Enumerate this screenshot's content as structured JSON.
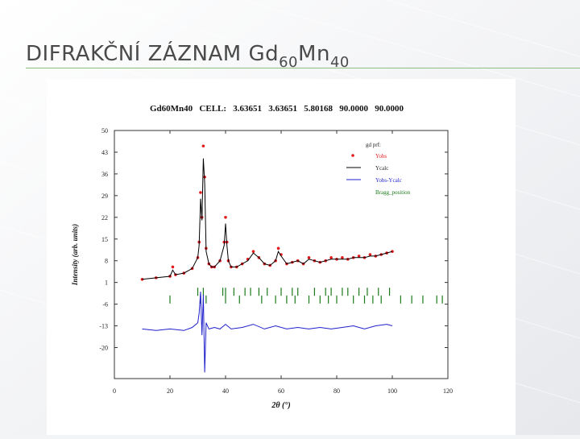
{
  "slide": {
    "title_main": "DIFRAKČNÍ ZÁZNAM Gd",
    "title_sub1": "60",
    "title_mid": "Mn",
    "title_sub2": "40"
  },
  "chart_data": {
    "type": "line",
    "title": "Gd60Mn40   CELL:   3.63651   3.63651   5.80168   90.0000   90.0000",
    "xlabel": "2θ (°)",
    "ylabel": "Intensity (arb. units)",
    "xlim": [
      0,
      120
    ],
    "ylim": [
      -30,
      50
    ],
    "xticks": [
      0,
      20,
      40,
      60,
      80,
      100,
      120
    ],
    "yticks": [
      50,
      43,
      36,
      29,
      22,
      15,
      8,
      1,
      -6,
      -13,
      -20
    ],
    "ytick_labels": [
      "50",
      "43",
      "36",
      "29",
      "22",
      "15",
      "8",
      "1",
      "-6",
      "-13",
      "-20"
    ],
    "legend_title": "gd prf:",
    "legend": [
      {
        "label": "Yobs",
        "color": "#e41a1c",
        "style": "points"
      },
      {
        "label": "Ycalc",
        "color": "#000000",
        "style": "line"
      },
      {
        "label": "Yobs-Ycalc",
        "color": "#1f1fcc",
        "style": "line"
      },
      {
        "label": "Bragg_position",
        "color": "#1a7a1a",
        "style": "ticks"
      }
    ],
    "series": [
      {
        "name": "Yobs",
        "x": [
          10,
          15,
          20,
          21,
          22,
          25,
          28,
          30,
          30.5,
          31,
          31.5,
          32,
          32.5,
          33,
          34,
          35,
          36,
          38,
          39.5,
          40,
          40.5,
          41,
          42,
          44,
          46,
          48,
          50,
          52,
          54,
          56,
          58,
          59,
          60,
          62,
          64,
          66,
          68,
          70,
          72,
          74,
          76,
          78,
          80,
          82,
          84,
          86,
          88,
          90,
          92,
          94,
          96,
          98,
          100
        ],
        "y": [
          2,
          2.5,
          3,
          6,
          3.5,
          4,
          5.5,
          9,
          14,
          30,
          22,
          45,
          35,
          12,
          7,
          6,
          6,
          8,
          14,
          22,
          14,
          8,
          6,
          6,
          7,
          8.5,
          11,
          9,
          7,
          6.5,
          8,
          12,
          10,
          7,
          7.5,
          8,
          7,
          9,
          8,
          7.5,
          8,
          9,
          8.5,
          9,
          8.5,
          9,
          9.5,
          9,
          10,
          9.5,
          10,
          10.5,
          11
        ]
      },
      {
        "name": "Ycalc",
        "x": [
          10,
          15,
          20,
          21,
          22,
          25,
          28,
          30,
          30.5,
          31,
          31.5,
          32,
          32.5,
          33,
          34,
          35,
          36,
          38,
          39.5,
          40,
          40.5,
          41,
          42,
          44,
          46,
          48,
          50,
          52,
          54,
          56,
          58,
          59,
          60,
          62,
          64,
          66,
          68,
          70,
          72,
          74,
          76,
          78,
          80,
          82,
          84,
          86,
          88,
          90,
          92,
          94,
          96,
          98,
          100
        ],
        "y": [
          2,
          2.5,
          3,
          5,
          3.5,
          4,
          5.5,
          9,
          13,
          28,
          21,
          41,
          33,
          11,
          7,
          6,
          6,
          8,
          13,
          20,
          13,
          8,
          6,
          6,
          7,
          8,
          10.5,
          9,
          7,
          6.5,
          8,
          11,
          9.5,
          7,
          7.5,
          8,
          7,
          8.5,
          8,
          7.5,
          8,
          8.5,
          8.5,
          8.5,
          8.5,
          9,
          9,
          9,
          9.5,
          9.5,
          10,
          10.5,
          11
        ]
      },
      {
        "name": "Yobs-Ycalc",
        "x": [
          10,
          15,
          20,
          25,
          28,
          30,
          30.5,
          31,
          31.5,
          32,
          32.5,
          33,
          34,
          36,
          38,
          40,
          42,
          46,
          50,
          54,
          58,
          62,
          66,
          70,
          74,
          78,
          82,
          86,
          90,
          94,
          98,
          100
        ],
        "y": [
          -14,
          -14.5,
          -14,
          -14.5,
          -13.5,
          -12,
          -9,
          -2,
          -16,
          -3,
          -28,
          -12,
          -14,
          -13.5,
          -14,
          -12.5,
          -14,
          -13.5,
          -12.5,
          -14,
          -13,
          -14,
          -13.5,
          -14,
          -13.5,
          -14,
          -13.5,
          -13,
          -14,
          -13,
          -12.5,
          -13
        ]
      }
    ],
    "bragg_rows": [
      {
        "y": -2,
        "x": [
          30,
          32,
          39,
          40,
          43,
          47,
          49,
          52,
          55,
          60,
          64,
          66,
          72,
          76,
          78,
          82,
          84,
          88,
          91,
          95,
          99
        ]
      },
      {
        "y": -4.5,
        "x": [
          20,
          31,
          33,
          40,
          45,
          53,
          58,
          62,
          65,
          70,
          74,
          77,
          80,
          86,
          90,
          93,
          96,
          103,
          107,
          111,
          116,
          118
        ]
      }
    ]
  }
}
